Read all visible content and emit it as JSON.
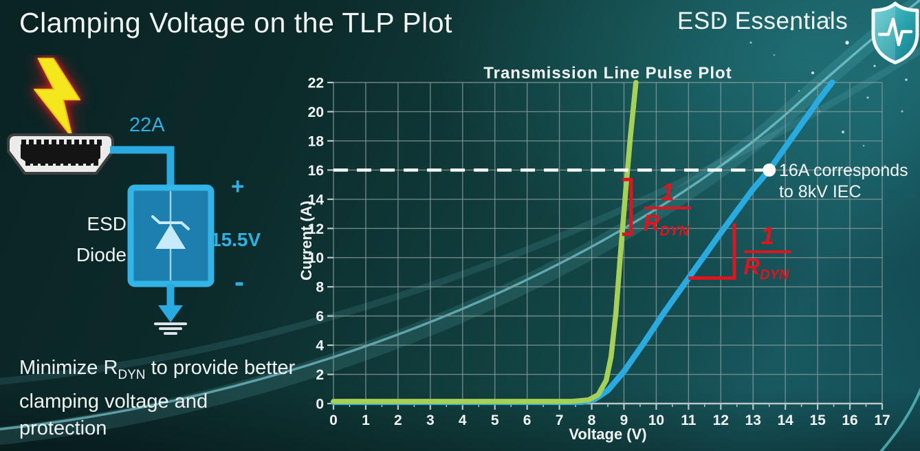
{
  "header": {
    "title": "Clamping Voltage on the TLP Plot",
    "brand": "ESD Essentials"
  },
  "diagram": {
    "surge_current": "22A",
    "device_line1": "ESD",
    "device_line2": "Diode",
    "polarity_plus": "+",
    "clamp_voltage": "15.5V",
    "polarity_minus": "-"
  },
  "note": {
    "prefix": "Minimize R",
    "sub": "DYN",
    "suffix": " to provide better clamping voltage and protection"
  },
  "colors": {
    "accent_cyan": "#2fb0e2",
    "curve_green": "#a6d155",
    "curve_blue": "#29abe2",
    "annotation_red": "#e0141c",
    "grid_grey": "#87999b",
    "background_teal": "#11403f"
  },
  "chart_data": {
    "type": "line",
    "title": "Transmission Line Pulse Plot",
    "xlabel": "Voltage (V)",
    "ylabel": "Current (A)",
    "xlim": [
      0,
      17
    ],
    "ylim": [
      0,
      22
    ],
    "x_tick_step": 1,
    "x_minor_step": 0.5,
    "y_tick_step": 2,
    "grid": true,
    "legend": "none",
    "series": [
      {
        "name": "blue-curve-higher-rdyn",
        "color": "#29abe2",
        "width": 8.5,
        "points": [
          [
            0,
            0.1
          ],
          [
            7.7,
            0.1
          ],
          [
            8.1,
            0.3
          ],
          [
            8.5,
            0.9
          ],
          [
            9.0,
            2.2
          ],
          [
            9.6,
            4.1
          ],
          [
            10.2,
            6.1
          ],
          [
            11.0,
            8.6
          ],
          [
            12.0,
            11.7
          ],
          [
            13.0,
            14.7
          ],
          [
            13.5,
            16.0
          ],
          [
            14.2,
            18.2
          ],
          [
            15.0,
            20.7
          ],
          [
            15.45,
            22
          ]
        ]
      },
      {
        "name": "green-curve-lower-rdyn",
        "color": "#a6d155",
        "width": 7.5,
        "points": [
          [
            0,
            0.15
          ],
          [
            7.4,
            0.15
          ],
          [
            7.9,
            0.25
          ],
          [
            8.2,
            0.6
          ],
          [
            8.45,
            1.6
          ],
          [
            8.6,
            3.2
          ],
          [
            8.75,
            6.2
          ],
          [
            8.9,
            10.5
          ],
          [
            9.05,
            14.5
          ],
          [
            9.2,
            18.3
          ],
          [
            9.37,
            22
          ]
        ]
      }
    ],
    "annotations": {
      "threshold": {
        "y": 16,
        "x_dot": 13.5,
        "label_line1": "16A corresponds",
        "label_line2": "to 8kV IEC",
        "line_color": "#ffffff"
      },
      "slope_markers": [
        {
          "shape": "vertical-bracket",
          "x": 9.22,
          "y_bottom": 11.6,
          "y_top": 15.35,
          "feet": "left",
          "num": "1",
          "den": "R",
          "den_sub": "DYN",
          "frac_x": 10.35,
          "frac_y": 13.4
        },
        {
          "shape": "corner",
          "x_corner": 12.42,
          "y_corner": 8.6,
          "x_left": 11.0,
          "y_top": 12.35,
          "num": "1",
          "den": "R",
          "den_sub": "DYN",
          "frac_x": 13.45,
          "frac_y": 10.4
        }
      ]
    }
  }
}
